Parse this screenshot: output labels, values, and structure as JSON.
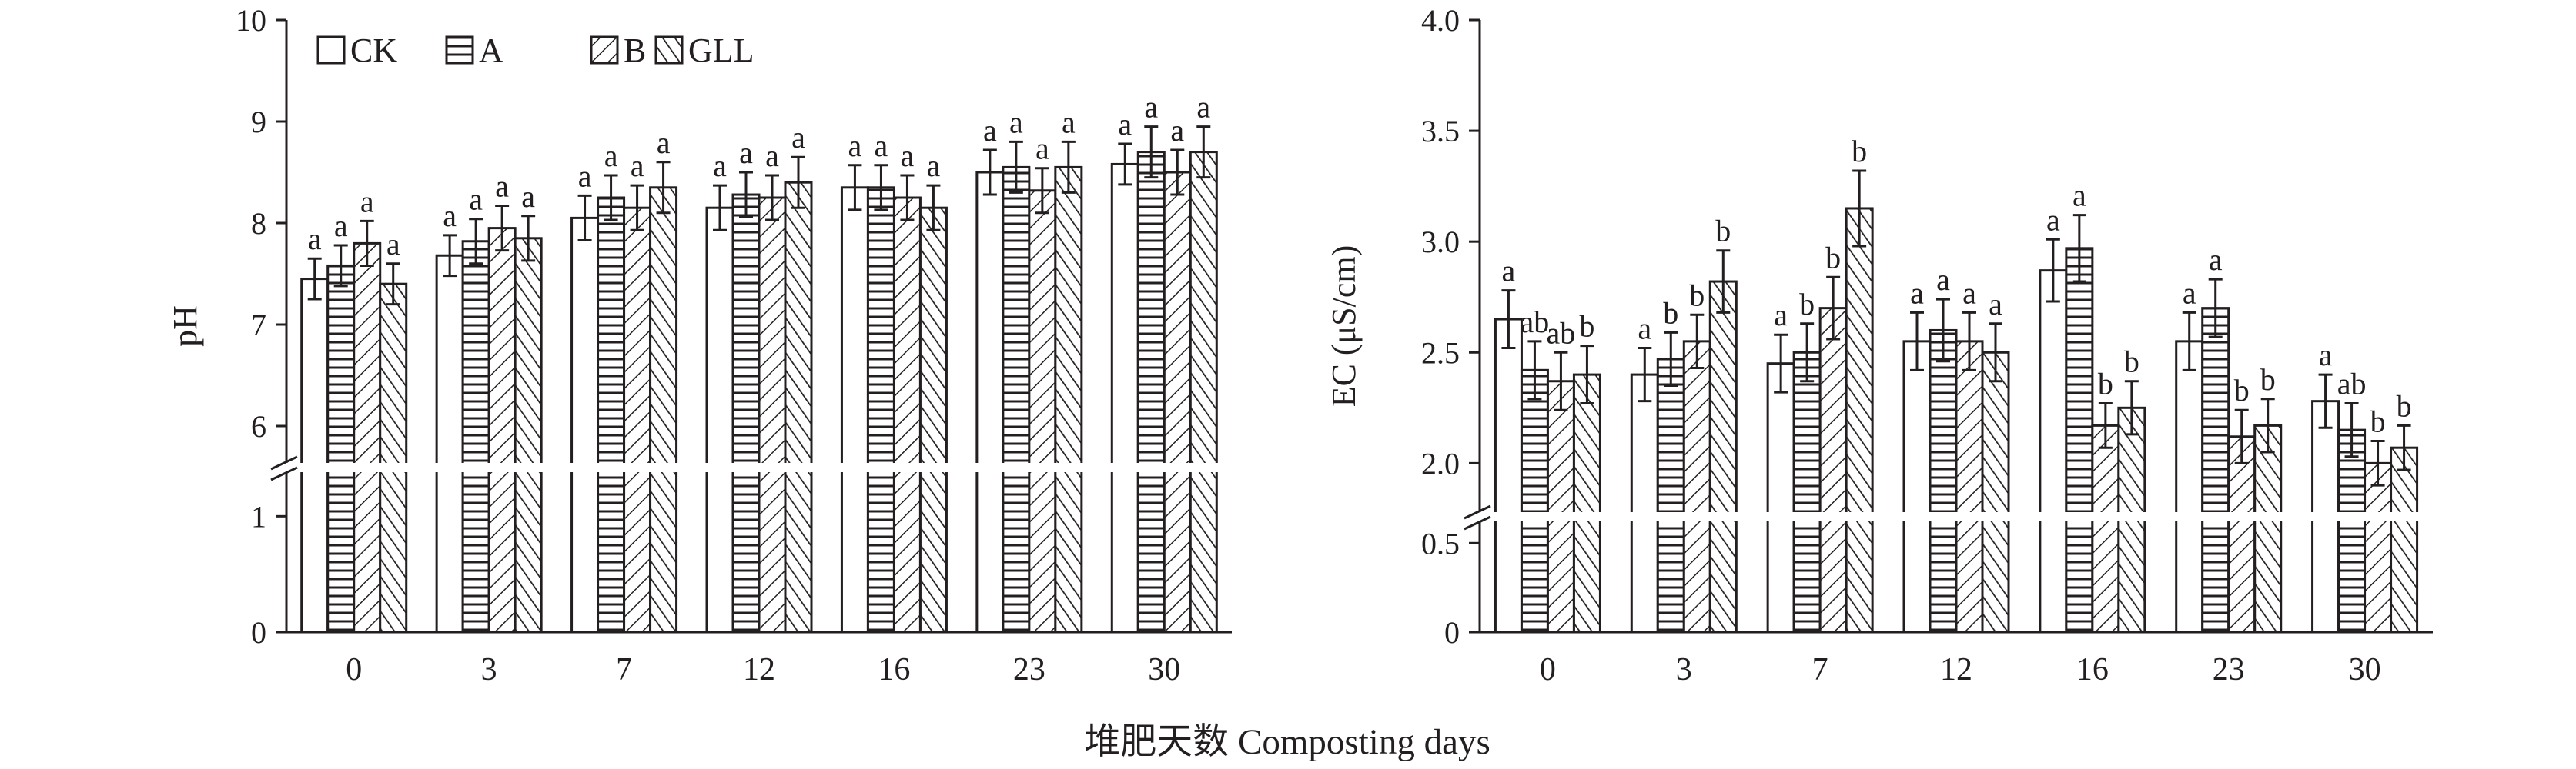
{
  "chart_data": [
    {
      "type": "bar",
      "id": "ph",
      "ylabel": "pH",
      "xlabel": "",
      "categories": [
        "0",
        "3",
        "7",
        "12",
        "16",
        "23",
        "30"
      ],
      "y_ticks_upper": [
        "6",
        "7",
        "8",
        "9",
        "10"
      ],
      "y_ticks_lower": [
        "0",
        "1"
      ],
      "y_break": [
        1.5,
        5.5
      ],
      "ylim": [
        0,
        10
      ],
      "legend": {
        "position": "top-left"
      },
      "series": [
        {
          "name": "CK",
          "pattern": "white",
          "values": [
            7.45,
            7.68,
            8.05,
            8.15,
            8.35,
            8.5,
            8.58
          ],
          "errors": [
            0.2,
            0.2,
            0.22,
            0.22,
            0.22,
            0.22,
            0.2
          ],
          "letters": [
            "a",
            "a",
            "a",
            "a",
            "a",
            "a",
            "a"
          ]
        },
        {
          "name": "A",
          "pattern": "horizontal-lines",
          "values": [
            7.58,
            7.82,
            8.25,
            8.28,
            8.35,
            8.55,
            8.7
          ],
          "errors": [
            0.2,
            0.22,
            0.22,
            0.22,
            0.22,
            0.25,
            0.25
          ],
          "letters": [
            "a",
            "a",
            "a",
            "a",
            "a",
            "a",
            "a"
          ]
        },
        {
          "name": "B",
          "pattern": "forward-diagonal",
          "values": [
            7.8,
            7.95,
            8.15,
            8.25,
            8.25,
            8.32,
            8.5
          ],
          "errors": [
            0.22,
            0.22,
            0.22,
            0.22,
            0.22,
            0.22,
            0.22
          ],
          "letters": [
            "a",
            "a",
            "a",
            "a",
            "a",
            "a",
            "a"
          ]
        },
        {
          "name": "GLL",
          "pattern": "back-diagonal",
          "values": [
            7.4,
            7.85,
            8.35,
            8.4,
            8.15,
            8.55,
            8.7
          ],
          "errors": [
            0.2,
            0.22,
            0.25,
            0.25,
            0.22,
            0.25,
            0.25
          ],
          "letters": [
            "a",
            "a",
            "a",
            "a",
            "a",
            "a",
            "a"
          ]
        }
      ]
    },
    {
      "type": "bar",
      "id": "ec",
      "ylabel": "EC (μS/cm)",
      "xlabel": "",
      "categories": [
        "0",
        "3",
        "7",
        "12",
        "16",
        "23",
        "30"
      ],
      "y_ticks_upper": [
        "2.0",
        "2.5",
        "3.0",
        "3.5",
        "4.0"
      ],
      "y_ticks_lower": [
        "0",
        "0.5"
      ],
      "y_break": [
        0.7,
        1.8
      ],
      "ylim": [
        0,
        4.0
      ],
      "series": [
        {
          "name": "CK",
          "pattern": "white",
          "values": [
            2.65,
            2.4,
            2.45,
            2.55,
            2.87,
            2.55,
            2.28
          ],
          "errors": [
            0.13,
            0.12,
            0.13,
            0.13,
            0.14,
            0.13,
            0.12
          ],
          "letters": [
            "a",
            "a",
            "a",
            "a",
            "a",
            "a",
            "a"
          ]
        },
        {
          "name": "A",
          "pattern": "horizontal-lines",
          "values": [
            2.42,
            2.47,
            2.5,
            2.6,
            2.97,
            2.7,
            2.15
          ],
          "errors": [
            0.13,
            0.12,
            0.13,
            0.14,
            0.15,
            0.13,
            0.12
          ],
          "letters": [
            "ab",
            "b",
            "b",
            "a",
            "a",
            "a",
            "ab"
          ]
        },
        {
          "name": "B",
          "pattern": "forward-diagonal",
          "values": [
            2.37,
            2.55,
            2.7,
            2.55,
            2.17,
            2.12,
            2.0
          ],
          "errors": [
            0.13,
            0.12,
            0.14,
            0.13,
            0.1,
            0.12,
            0.1
          ],
          "letters": [
            "ab",
            "b",
            "b",
            "a",
            "b",
            "b",
            "b"
          ]
        },
        {
          "name": "GLL",
          "pattern": "back-diagonal",
          "values": [
            2.4,
            2.82,
            3.15,
            2.5,
            2.25,
            2.17,
            2.07
          ],
          "errors": [
            0.13,
            0.14,
            0.17,
            0.13,
            0.12,
            0.12,
            0.1
          ],
          "letters": [
            "b",
            "b",
            "b",
            "a",
            "b",
            "b",
            "b"
          ]
        }
      ]
    }
  ],
  "shared_xlabel": "堆肥天数 Composting days"
}
